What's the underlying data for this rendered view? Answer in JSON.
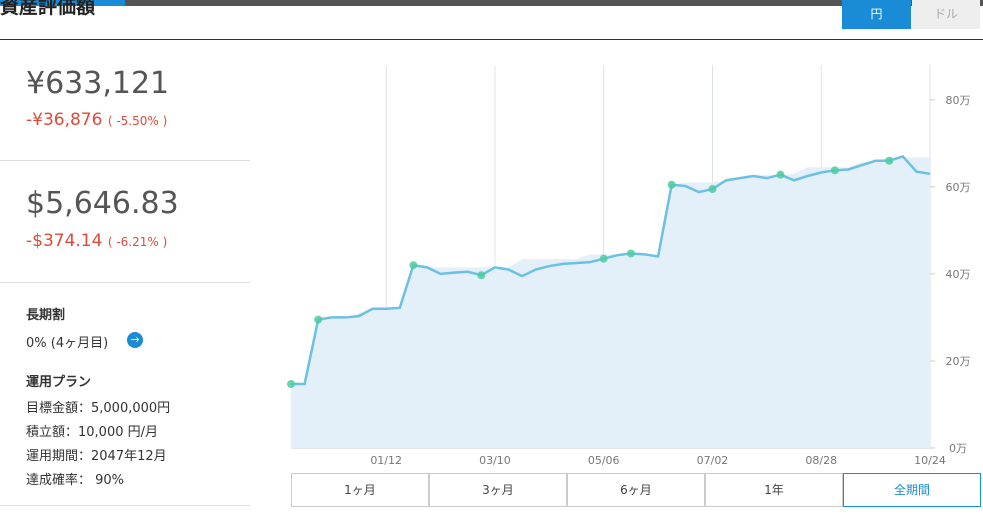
{
  "header": {
    "title": "資産評価額",
    "currency_buttons": [
      "円",
      "ドル"
    ]
  },
  "summary": {
    "yen": {
      "value": "¥633,121",
      "change": "-¥36,876",
      "percent": "( -5.50% )"
    },
    "usd": {
      "value": "$5,646.83",
      "change": "-$374.14",
      "percent": "( -6.21% )"
    }
  },
  "discount": {
    "title": "長期割",
    "text": "0% (4ヶ月目)"
  },
  "plan": {
    "title": "運用プラン",
    "items": [
      "目標金額：5,000,000円",
      "積立額：10,000 円/月",
      "運用期間：2047年12月",
      "達成確率： 90%"
    ]
  },
  "range_buttons": [
    "1ヶ月",
    "3ヶ月",
    "6ヶ月",
    "1年",
    "全期間"
  ],
  "chart_data": {
    "type": "line",
    "categories": [
      null,
      null,
      null,
      null,
      null,
      null,
      null,
      "01/12",
      null,
      null,
      null,
      null,
      null,
      null,
      null,
      "03/10",
      null,
      null,
      null,
      null,
      null,
      null,
      null,
      "05/06",
      null,
      null,
      null,
      null,
      null,
      null,
      null,
      "07/02",
      null,
      null,
      null,
      null,
      null,
      null,
      null,
      "08/28",
      null,
      null,
      null,
      null,
      null,
      null,
      null,
      "10/24"
    ],
    "series": [
      {
        "color": "#6cc0e6",
        "values": [
          14.7,
          14.7,
          29.5,
          30,
          30,
          30.3,
          32,
          32,
          32.2,
          42,
          41.5,
          40,
          40.3,
          40.5,
          39.7,
          41.5,
          41,
          39.5,
          41,
          41.8,
          42.3,
          42.5,
          42.7,
          43.5,
          44.3,
          44.7,
          44.5,
          44,
          60.5,
          60.2,
          58.8,
          59.5,
          61.5,
          62,
          62.5,
          62,
          62.8,
          61.5,
          62.5,
          63.3,
          63.8,
          64,
          65,
          66,
          66,
          67,
          63.5,
          63
        ]
      },
      {
        "color": "#e3f0f9",
        "values": [
          15,
          15,
          30,
          30,
          30,
          31,
          32,
          32,
          32,
          41.5,
          41.5,
          41.5,
          41.5,
          41.5,
          41.5,
          41.5,
          41.5,
          43.4,
          43.4,
          43.4,
          43.4,
          43.4,
          44.5,
          44.5,
          44.5,
          44.5,
          44.5,
          44.5,
          60.5,
          61,
          61,
          61,
          61.5,
          62,
          62.7,
          62.7,
          62.7,
          63,
          64.5,
          64.5,
          64.5,
          64.5,
          65.7,
          65.7,
          66.8,
          66.8,
          66.8,
          66.8
        ]
      },
      {
        "color": "#4ecb9e",
        "values": [
          14.7,
          null,
          29.5,
          null,
          null,
          null,
          null,
          null,
          null,
          42,
          null,
          null,
          null,
          null,
          39.7,
          null,
          null,
          null,
          null,
          null,
          null,
          null,
          null,
          43.5,
          null,
          44.7,
          null,
          null,
          60.5,
          null,
          null,
          59.5,
          null,
          null,
          null,
          null,
          62.8,
          null,
          null,
          null,
          63.8,
          null,
          null,
          null,
          66,
          null,
          null,
          null
        ]
      }
    ],
    "ylim": [
      0,
      88
    ],
    "yticks": [
      {
        "value": 0,
        "label": "0万"
      },
      {
        "value": 20,
        "label": "20万"
      },
      {
        "value": 40,
        "label": "40万"
      },
      {
        "value": 60,
        "label": "60万"
      },
      {
        "value": 80,
        "label": "80万"
      }
    ]
  }
}
